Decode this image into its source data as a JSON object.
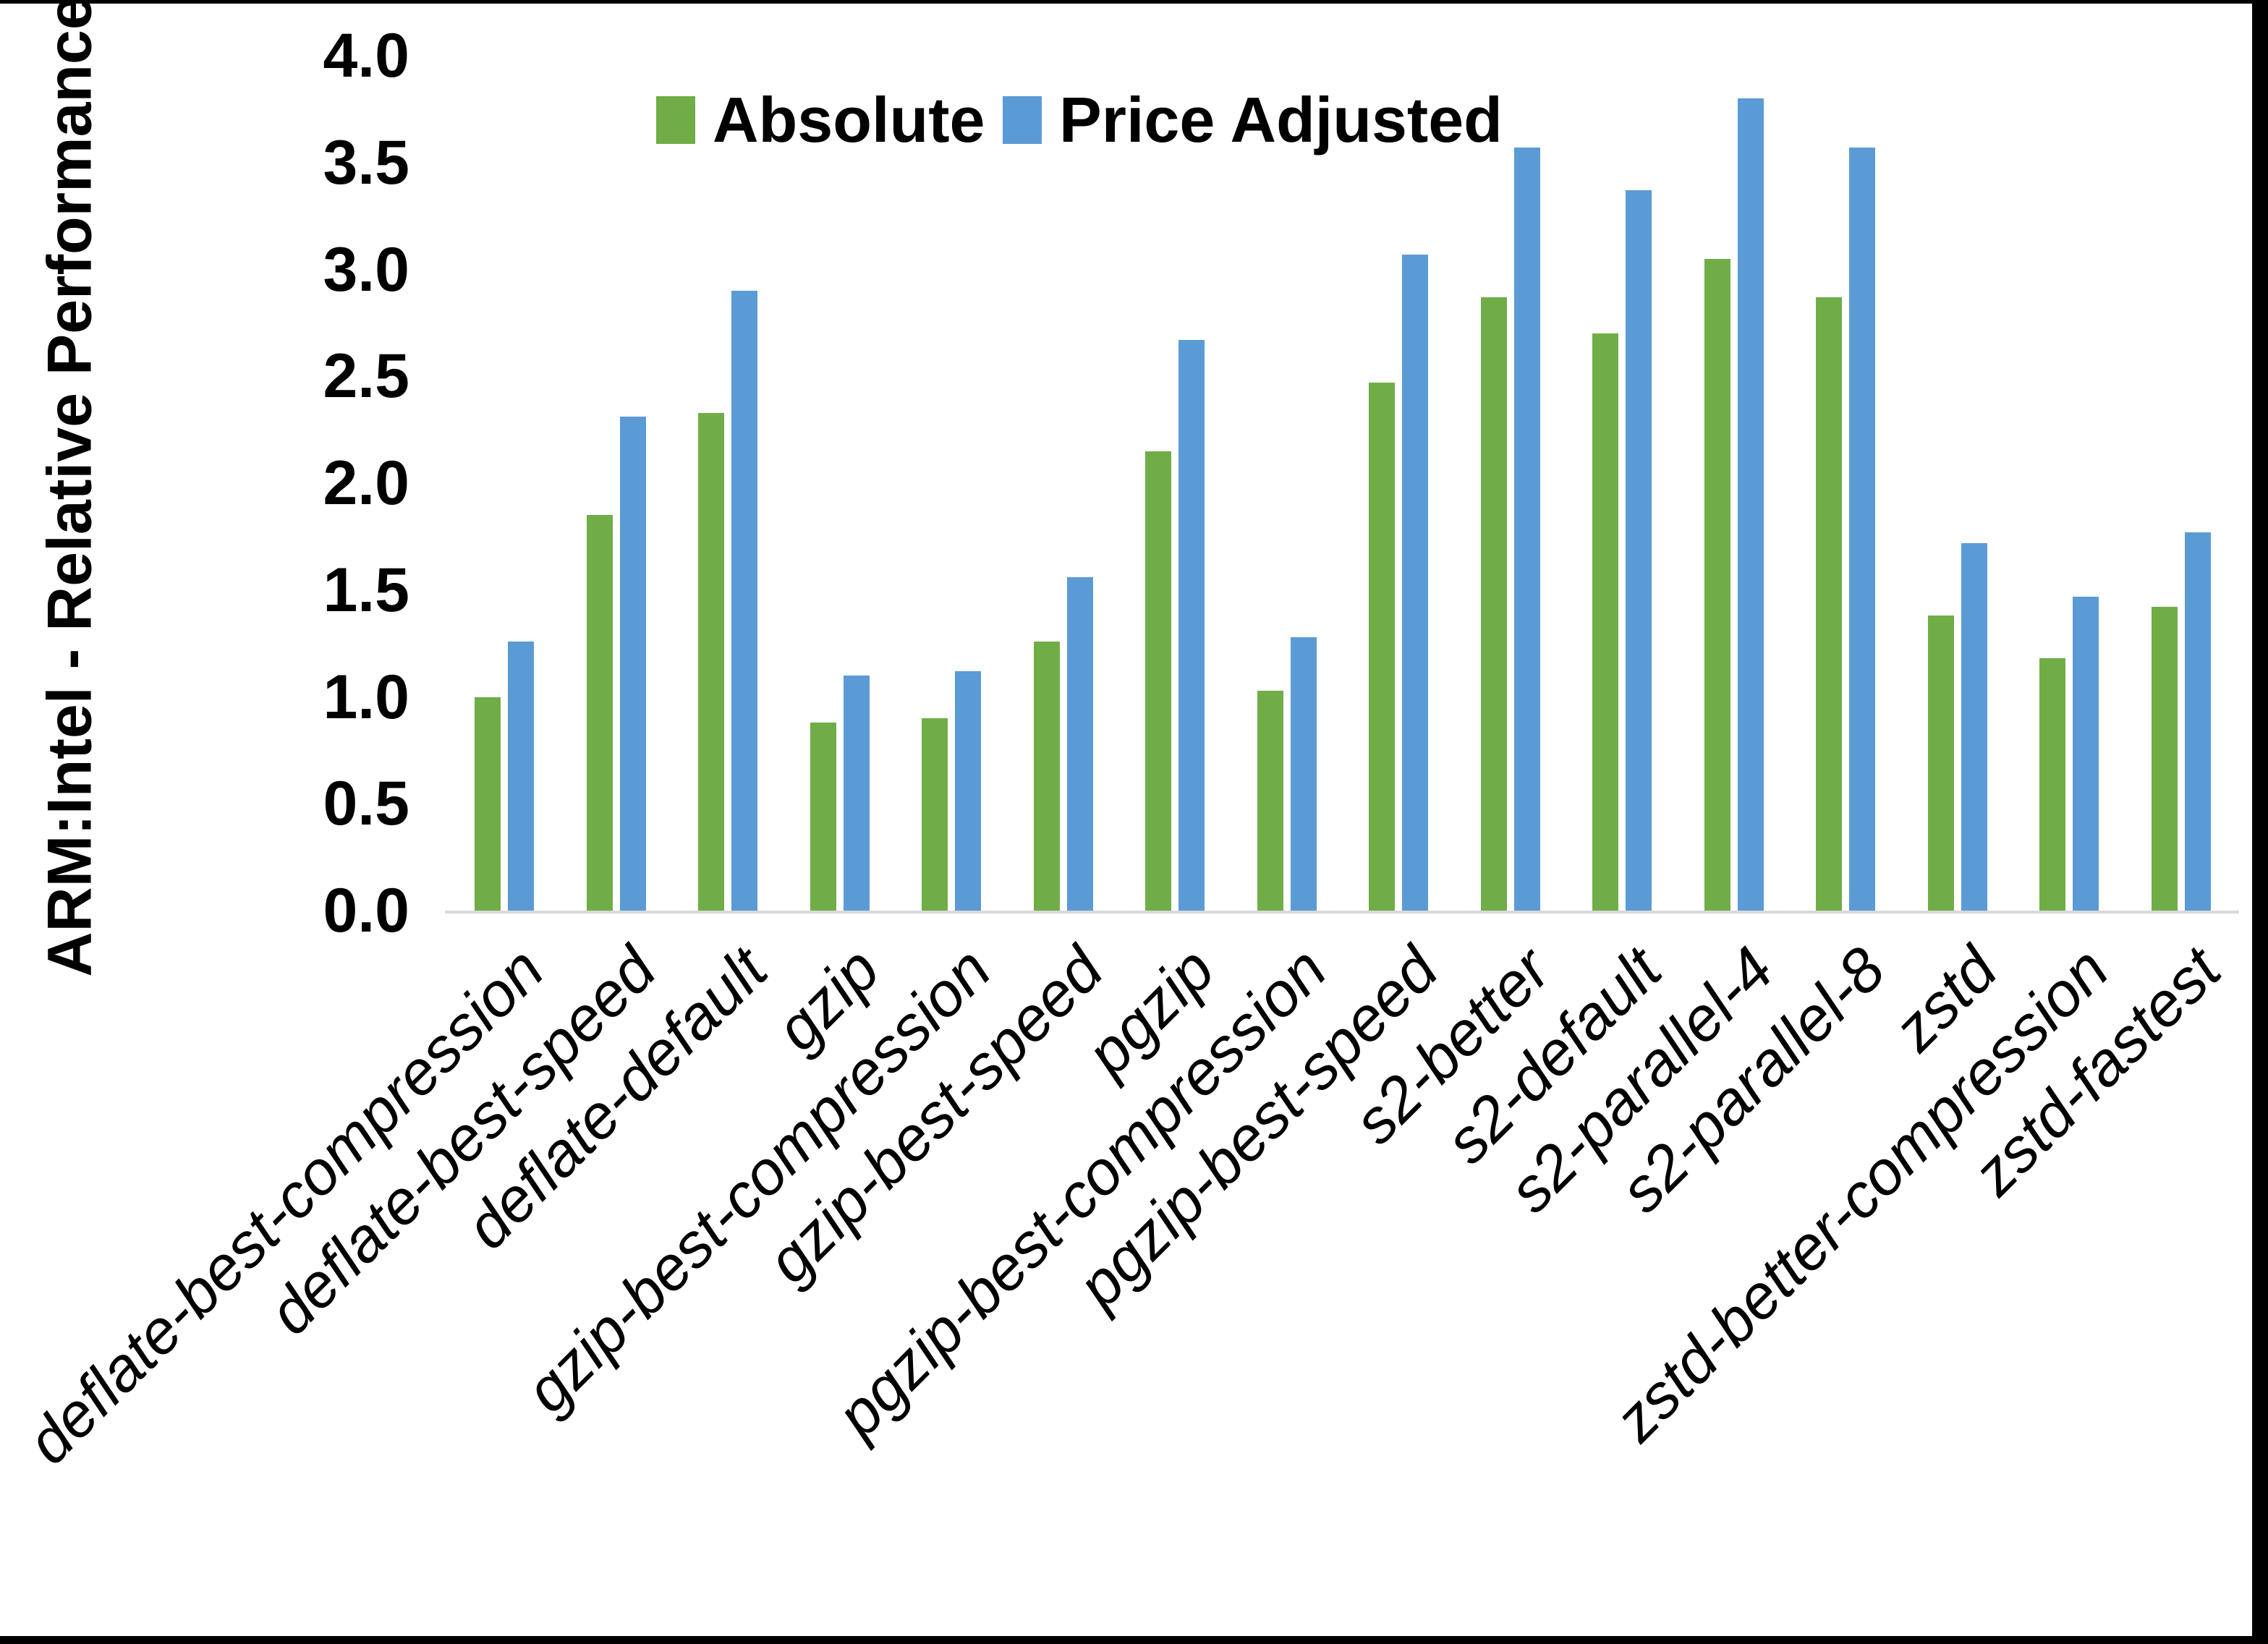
{
  "figure": {
    "background": "#ffffff",
    "border_color": "#000000",
    "axis_line_color": "#d9d9d9"
  },
  "y_axis": {
    "title": "ARM:Intel - Relative Performance",
    "tick_labels": [
      "0.0",
      "0.5",
      "1.0",
      "1.5",
      "2.0",
      "2.5",
      "3.0",
      "3.5",
      "4.0"
    ],
    "min": 0,
    "max": 4
  },
  "legend": {
    "items": [
      {
        "label": "Absolute",
        "color": "#70ad47"
      },
      {
        "label": "Price Adjusted",
        "color": "#5b9bd5"
      }
    ],
    "position": "top"
  },
  "chart_data": {
    "type": "bar",
    "title": "",
    "xlabel": "",
    "ylabel": "ARM:Intel - Relative Performance",
    "ylim": [
      0,
      4
    ],
    "y_tick_step": 0.5,
    "grid": false,
    "legend_position": "top",
    "categories": [
      "deflate-best-compression",
      "deflate-best-speed",
      "deflate-default",
      "gzip",
      "gzip-best-compression",
      "gzip-best-speed",
      "pgzip",
      "pgzip-best-compression",
      "pgzip-best-speed",
      "s2-better",
      "s2-default",
      "s2-parallel-4",
      "s2-parallel-8",
      "zstd",
      "zstd-better-compression",
      "zstd-fastest"
    ],
    "series": [
      {
        "name": "Absolute",
        "color": "#70ad47",
        "values": [
          1.0,
          1.85,
          2.33,
          0.88,
          0.9,
          1.26,
          2.15,
          1.03,
          2.47,
          2.87,
          2.7,
          3.05,
          2.87,
          1.38,
          1.18,
          1.42
        ]
      },
      {
        "name": "Price Adjusted",
        "color": "#5b9bd5",
        "values": [
          1.26,
          2.31,
          2.9,
          1.1,
          1.12,
          1.56,
          2.67,
          1.28,
          3.07,
          3.57,
          3.37,
          3.8,
          3.57,
          1.72,
          1.47,
          1.77
        ]
      }
    ]
  }
}
